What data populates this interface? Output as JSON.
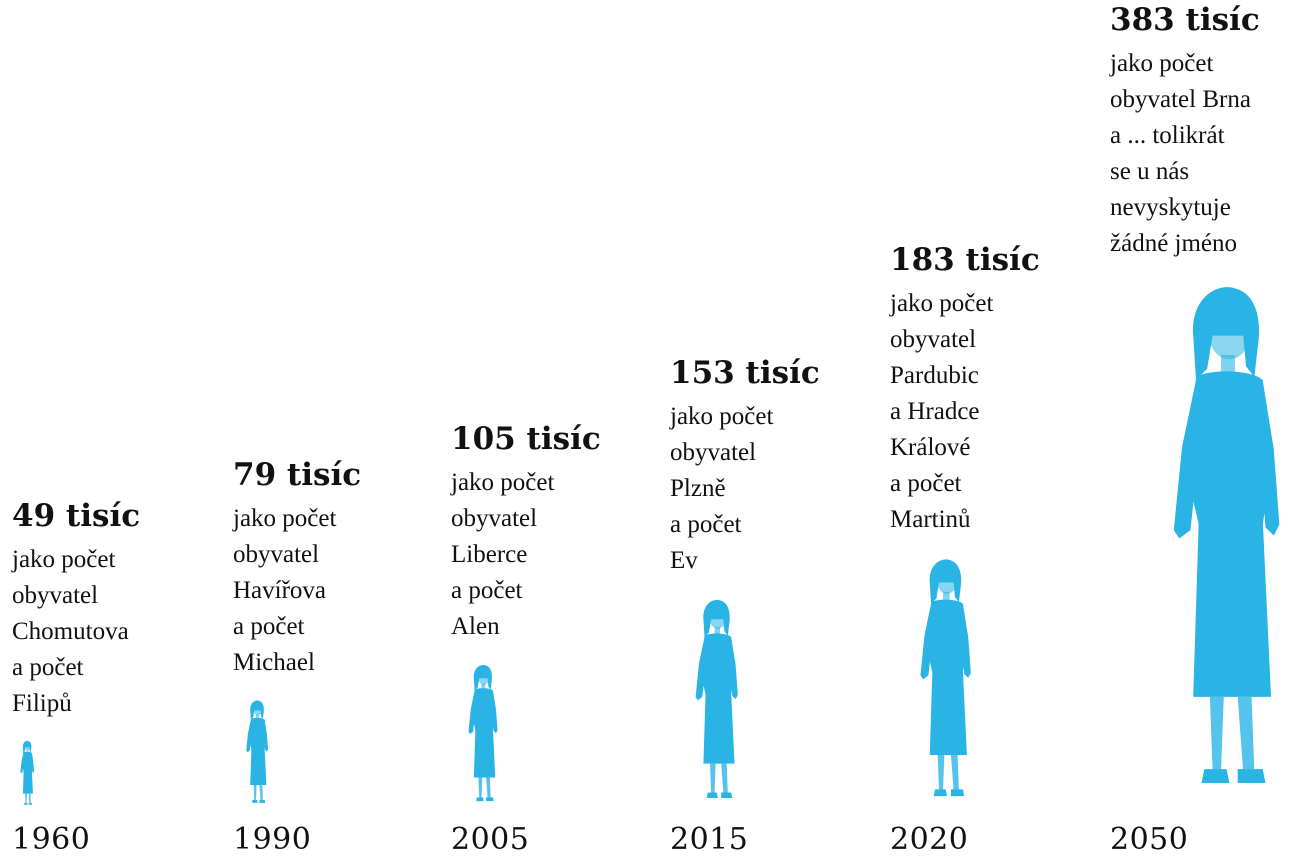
{
  "chart_data": {
    "type": "bar",
    "title": "",
    "xlabel": "",
    "ylabel": "",
    "value_unit": "tisíc",
    "bar_color": "#2ab4e6",
    "categories": [
      "1960",
      "1990",
      "2005",
      "2015",
      "2020",
      "2050"
    ],
    "values": [
      49,
      79,
      105,
      153,
      183,
      383
    ],
    "headlines": [
      "49 tisíc",
      "79 tisíc",
      "105 tisíc",
      "153 tisíc",
      "183 tisíc",
      "383 tisíc"
    ],
    "annotations": [
      [
        "jako počet",
        "obyvatel",
        "Chomutova",
        "a počet",
        "Filipů"
      ],
      [
        "jako počet",
        "obyvatel",
        "Havířova",
        "a počet",
        "Michael"
      ],
      [
        "jako počet",
        "obyvatel",
        "Liberce",
        "a počet",
        "Alen"
      ],
      [
        "jako počet",
        "obyvatel",
        "Plzně",
        "a počet",
        "Ev"
      ],
      [
        "jako počet",
        "obyvatel",
        "Pardubic",
        "a Hradce",
        "Králové",
        "a počet",
        "Martinů"
      ],
      [
        "jako počet",
        "obyvatel Brna",
        "a ... tolikrát",
        "se u nás",
        "nevyskytuje",
        "žádné jméno"
      ]
    ]
  }
}
